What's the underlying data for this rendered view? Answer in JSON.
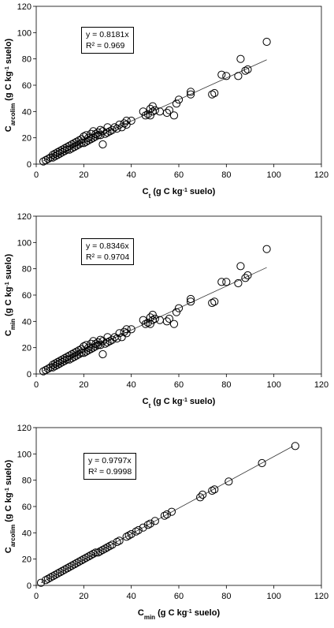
{
  "chart_data": [
    {
      "type": "scatter",
      "xlabel": {
        "main": "C",
        "sub": "t",
        "rest_pre": " (g C kg",
        "sup": "-1",
        "rest_post": " suelo)"
      },
      "ylabel": {
        "main": "C",
        "sub": "arcolim",
        "rest_pre": " (g C kg",
        "sup": "-1",
        "rest_post": " suelo)"
      },
      "xlim": [
        0,
        120
      ],
      "ylim": [
        0,
        120
      ],
      "xticks": [
        "0",
        "20",
        "40",
        "60",
        "80",
        "100",
        "120"
      ],
      "yticks": [
        "0",
        "20",
        "40",
        "60",
        "80",
        "100",
        "120"
      ],
      "annotation": {
        "equation": "y = 0.8181x",
        "r2": "R² = 0.969"
      },
      "trendline": {
        "slope": 0.8181,
        "x_range": [
          3,
          97
        ]
      },
      "series": [
        {
          "x": [
            3,
            4,
            5,
            6,
            7,
            7,
            8,
            8,
            9,
            9,
            10,
            10,
            11,
            11,
            12,
            12,
            13,
            13,
            14,
            14,
            15,
            15,
            16,
            16,
            17,
            17,
            18,
            18,
            19,
            19,
            20,
            20,
            21,
            21,
            22,
            22,
            23,
            23,
            24,
            24,
            25,
            25,
            26,
            26,
            27,
            27,
            28,
            28,
            29,
            30,
            30,
            31,
            32,
            33,
            34,
            35,
            36,
            37,
            38,
            38,
            40,
            45,
            46,
            47,
            48,
            48,
            49,
            49,
            50,
            52,
            55,
            56,
            58,
            59,
            60,
            65,
            65,
            74,
            75,
            78,
            80,
            85,
            86,
            88,
            89,
            97
          ],
          "y": [
            2,
            3,
            4,
            5,
            5,
            7,
            6,
            8,
            7,
            9,
            8,
            10,
            9,
            11,
            10,
            12,
            11,
            13,
            11,
            14,
            12,
            15,
            13,
            16,
            14,
            17,
            15,
            18,
            16,
            19,
            16,
            21,
            17,
            22,
            18,
            20,
            19,
            23,
            20,
            25,
            21,
            23,
            22,
            24,
            22,
            26,
            15,
            25,
            23,
            24,
            28,
            25,
            26,
            28,
            27,
            30,
            28,
            31,
            30,
            33,
            33,
            40,
            37,
            38,
            37,
            42,
            40,
            44,
            41,
            40,
            39,
            41,
            37,
            46,
            49,
            53,
            55,
            53,
            54,
            68,
            67,
            67,
            80,
            71,
            72,
            93
          ]
        }
      ]
    },
    {
      "type": "scatter",
      "xlabel": {
        "main": "C",
        "sub": "t",
        "rest_pre": " (g C kg",
        "sup": "-1",
        "rest_post": " suelo)"
      },
      "ylabel": {
        "main": "C",
        "sub": "min",
        "rest_pre": " (g C kg",
        "sup": "-1",
        "rest_post": " suelo)"
      },
      "xlim": [
        0,
        120
      ],
      "ylim": [
        0,
        120
      ],
      "xticks": [
        "0",
        "20",
        "40",
        "60",
        "80",
        "100",
        "120"
      ],
      "yticks": [
        "0",
        "20",
        "40",
        "60",
        "80",
        "100",
        "120"
      ],
      "annotation": {
        "equation": "y = 0.8346x",
        "r2": "R² = 0.9704"
      },
      "trendline": {
        "slope": 0.8346,
        "x_range": [
          3,
          97
        ]
      },
      "series": [
        {
          "x": [
            3,
            4,
            5,
            6,
            7,
            7,
            8,
            8,
            9,
            9,
            10,
            10,
            11,
            11,
            12,
            12,
            13,
            13,
            14,
            14,
            15,
            15,
            16,
            16,
            17,
            17,
            18,
            18,
            19,
            19,
            20,
            20,
            21,
            21,
            22,
            22,
            23,
            23,
            24,
            24,
            25,
            25,
            26,
            26,
            27,
            27,
            28,
            28,
            29,
            30,
            30,
            31,
            32,
            33,
            34,
            35,
            36,
            37,
            38,
            38,
            40,
            45,
            46,
            47,
            48,
            48,
            49,
            49,
            50,
            52,
            55,
            56,
            58,
            59,
            60,
            65,
            65,
            74,
            75,
            78,
            80,
            85,
            86,
            88,
            89,
            97
          ],
          "y": [
            2,
            3,
            4,
            5,
            5,
            7,
            6,
            8,
            7,
            9,
            8,
            10,
            9,
            11,
            10,
            12,
            11,
            13,
            11,
            14,
            12,
            15,
            13,
            16,
            14,
            17,
            15,
            18,
            16,
            19,
            16,
            21,
            17,
            22,
            18,
            20,
            19,
            23,
            20,
            25,
            21,
            23,
            22,
            24,
            22,
            26,
            15,
            25,
            23,
            24,
            28,
            25,
            26,
            28,
            27,
            31,
            28,
            32,
            31,
            34,
            34,
            41,
            38,
            39,
            38,
            43,
            41,
            45,
            42,
            41,
            40,
            42,
            38,
            47,
            50,
            55,
            57,
            54,
            55,
            70,
            70,
            69,
            82,
            73,
            75,
            95
          ]
        }
      ]
    },
    {
      "type": "scatter",
      "xlabel": {
        "main": "C",
        "sub": "min",
        "rest_pre": " (g C kg",
        "sup": "-1",
        "rest_post": " suelo)"
      },
      "ylabel": {
        "main": "C",
        "sub": "arcolim",
        "rest_pre": " (g C kg",
        "sup": "-1",
        "rest_post": " suelo)"
      },
      "xlim": [
        0,
        120
      ],
      "ylim": [
        0,
        120
      ],
      "xticks": [
        "0",
        "20",
        "40",
        "60",
        "80",
        "100",
        "120"
      ],
      "yticks": [
        "0",
        "20",
        "40",
        "60",
        "80",
        "100",
        "120"
      ],
      "annotation": {
        "equation": "y = 0.9797x",
        "r2": "R² = 0.9998"
      },
      "trendline": {
        "slope": 0.9797,
        "x_range": [
          2,
          108
        ]
      },
      "series": [
        {
          "x": [
            2,
            4,
            5,
            6,
            7,
            8,
            9,
            10,
            11,
            12,
            13,
            14,
            15,
            16,
            17,
            18,
            19,
            20,
            21,
            22,
            23,
            24,
            25,
            26,
            27,
            28,
            29,
            30,
            31,
            32,
            34,
            35,
            38,
            39,
            40,
            42,
            43,
            45,
            47,
            48,
            50,
            54,
            55,
            57,
            69,
            70,
            74,
            75,
            81,
            95,
            109
          ],
          "y": [
            2,
            4,
            5,
            6,
            7,
            8,
            9,
            10,
            11,
            12,
            13,
            14,
            15,
            16,
            17,
            18,
            19,
            20,
            21,
            22,
            23,
            24,
            25,
            25,
            26,
            27,
            28,
            29,
            30,
            31,
            33,
            34,
            37,
            38,
            39,
            41,
            42,
            44,
            46,
            47,
            49,
            53,
            54,
            56,
            67,
            69,
            72,
            73,
            79,
            93,
            106
          ]
        }
      ]
    }
  ]
}
